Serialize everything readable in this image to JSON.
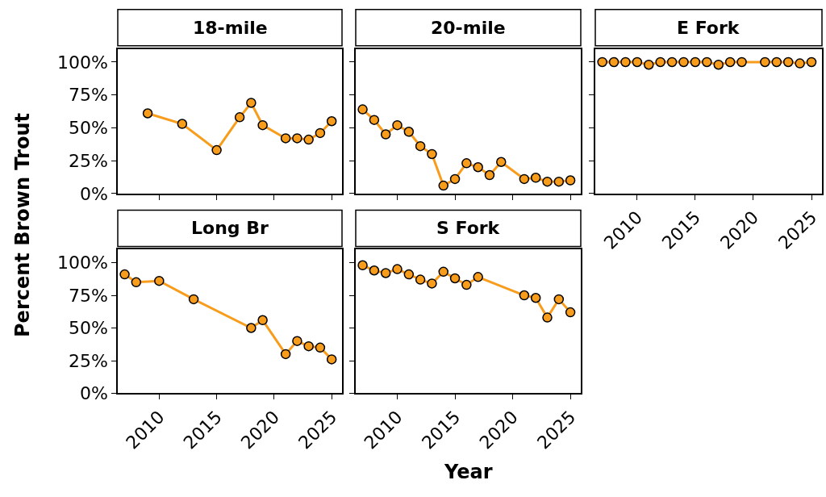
{
  "chart_data": [
    {
      "type": "line",
      "title": "18-mile",
      "ylabel": "Percent Brown Trout",
      "x": [
        2009,
        2012,
        2015,
        2017,
        2018,
        2019,
        2021,
        2022,
        2023,
        2024,
        2025
      ],
      "series": [
        {
          "color": "#f89c1c",
          "values": [
            61,
            53,
            33,
            58,
            69,
            52,
            42,
            42,
            41,
            46,
            55
          ]
        }
      ],
      "xlim": [
        2006.4,
        2025.9
      ],
      "ylim": [
        0,
        110
      ],
      "xticks": [
        {
          "value": 2010,
          "label": null
        },
        {
          "value": 2015,
          "label": null
        },
        {
          "value": 2020,
          "label": null
        },
        {
          "value": 2025,
          "label": null
        }
      ],
      "yticks": [
        {
          "value": 0,
          "label": "0%"
        },
        {
          "value": 25,
          "label": "25%"
        },
        {
          "value": 50,
          "label": "50%"
        },
        {
          "value": 75,
          "label": "75%"
        },
        {
          "value": 100,
          "label": "100%"
        }
      ],
      "tick_labels": "y",
      "marker": "circle"
    },
    {
      "type": "line",
      "title": "20-mile",
      "x": [
        2007,
        2008,
        2009,
        2010,
        2011,
        2012,
        2013,
        2014,
        2015,
        2016,
        2017,
        2018,
        2019,
        2021,
        2022,
        2023,
        2024,
        2025
      ],
      "series": [
        {
          "color": "#f89c1c",
          "values": [
            64,
            56,
            45,
            52,
            47,
            36,
            30,
            6,
            11,
            23,
            20,
            14,
            24,
            11,
            12,
            9,
            9,
            10
          ]
        }
      ],
      "xlim": [
        2006.4,
        2025.9
      ],
      "ylim": [
        0,
        110
      ],
      "xticks": [
        {
          "value": 2010,
          "label": null
        },
        {
          "value": 2015,
          "label": null
        },
        {
          "value": 2020,
          "label": null
        },
        {
          "value": 2025,
          "label": null
        }
      ],
      "yticks": [
        {
          "value": 0,
          "label": null
        },
        {
          "value": 25,
          "label": null
        },
        {
          "value": 50,
          "label": null
        },
        {
          "value": 75,
          "label": null
        },
        {
          "value": 100,
          "label": null
        }
      ],
      "tick_labels": false,
      "marker": "circle"
    },
    {
      "type": "line",
      "title": "E Fork",
      "x": [
        2007,
        2008,
        2009,
        2010,
        2011,
        2012,
        2013,
        2014,
        2015,
        2016,
        2017,
        2018,
        2019,
        2021,
        2022,
        2023,
        2024,
        2025
      ],
      "series": [
        {
          "color": "#f89c1c",
          "values": [
            100,
            100,
            100,
            100,
            98,
            100,
            100,
            100,
            100,
            100,
            98,
            100,
            100,
            100,
            100,
            100,
            99,
            100
          ]
        }
      ],
      "xlim": [
        2006.4,
        2025.9
      ],
      "ylim": [
        0,
        110
      ],
      "xticks": [
        2010,
        2015,
        2020,
        2025
      ],
      "yticks": [
        {
          "value": 0,
          "label": null
        },
        {
          "value": 25,
          "label": null
        },
        {
          "value": 50,
          "label": null
        },
        {
          "value": 75,
          "label": null
        },
        {
          "value": 100,
          "label": null
        }
      ],
      "tick_labels": "x",
      "marker": "circle"
    },
    {
      "type": "line",
      "title": "Long Br",
      "x": [
        2007,
        2008,
        2010,
        2013,
        2018,
        2019,
        2021,
        2022,
        2023,
        2024,
        2025
      ],
      "series": [
        {
          "color": "#f89c1c",
          "values": [
            91,
            85,
            86,
            72,
            50,
            56,
            30,
            40,
            36,
            35,
            26
          ]
        }
      ],
      "xlim": [
        2006.4,
        2025.9
      ],
      "ylim": [
        0,
        110
      ],
      "xticks": [
        2010,
        2015,
        2020,
        2025
      ],
      "yticks": [
        {
          "value": 0,
          "label": "0%"
        },
        {
          "value": 25,
          "label": "25%"
        },
        {
          "value": 50,
          "label": "50%"
        },
        {
          "value": 75,
          "label": "75%"
        },
        {
          "value": 100,
          "label": "100%"
        }
      ],
      "marker": "circle"
    },
    {
      "type": "line",
      "title": "S Fork",
      "xlabel": "Year",
      "x": [
        2007,
        2008,
        2009,
        2010,
        2011,
        2012,
        2013,
        2014,
        2015,
        2016,
        2017,
        2021,
        2022,
        2023,
        2024,
        2025
      ],
      "series": [
        {
          "color": "#f89c1c",
          "values": [
            98,
            94,
            92,
            95,
            91,
            87,
            84,
            93,
            88,
            83,
            89,
            75,
            73,
            58,
            72,
            62
          ]
        }
      ],
      "xlim": [
        2006.4,
        2025.9
      ],
      "ylim": [
        0,
        110
      ],
      "xticks": [
        2010,
        2015,
        2020,
        2025
      ],
      "yticks": [
        {
          "value": 0,
          "label": null
        },
        {
          "value": 25,
          "label": null
        },
        {
          "value": 50,
          "label": null
        },
        {
          "value": 75,
          "label": null
        },
        {
          "value": 100,
          "label": null
        }
      ],
      "tick_labels": "x",
      "marker": "circle"
    }
  ]
}
